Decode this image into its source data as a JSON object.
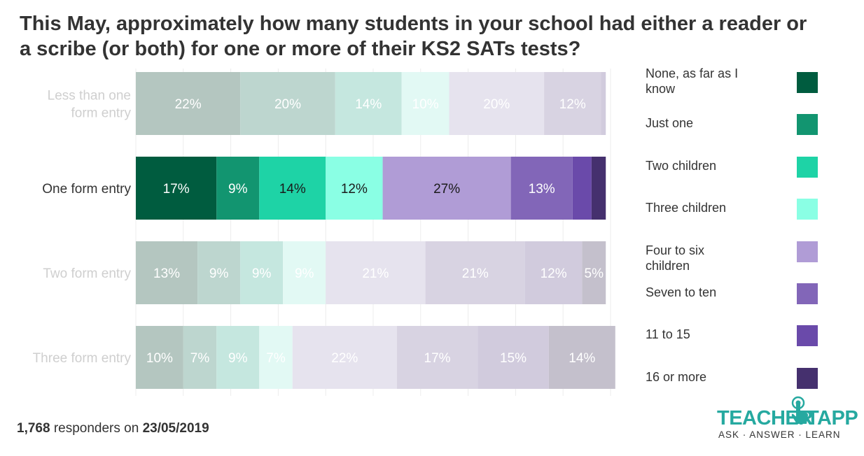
{
  "title": "This May, approximately how many students in your school had either a reader or a scribe (or both) for one or more of their KS2 SATs tests?",
  "footer": {
    "count": "1,768",
    "middle": "responders on",
    "date": "23/05/2019"
  },
  "logo": {
    "word1": "TEACHER",
    "word2": "TAPP",
    "tagline": "ASK · ANSWER · LEARN"
  },
  "legend": [
    {
      "label": "None, as far as I know",
      "color": "#005c3f"
    },
    {
      "label": "Just one",
      "color": "#129570"
    },
    {
      "label": "Two children",
      "color": "#1ed3a6"
    },
    {
      "label": "Three children",
      "color": "#8affe4"
    },
    {
      "label": "Four to six children",
      "color": "#b09cd6"
    },
    {
      "label": "Seven to ten",
      "color": "#8266b8"
    },
    {
      "label": "11 to 15",
      "color": "#6a4aaa"
    },
    {
      "label": "16 or more",
      "color": "#45306e"
    }
  ],
  "chart_data": {
    "type": "bar",
    "orientation": "horizontal",
    "stacked": "100%",
    "highlighted_category": "One form entry",
    "categories": [
      "Less than one form entry",
      "One form entry",
      "Two form entry",
      "Three form entry"
    ],
    "series": [
      {
        "name": "None, as far as I know",
        "values": [
          22,
          17,
          13,
          10
        ],
        "labels": [
          "22%",
          "17%",
          "13%",
          "10%"
        ]
      },
      {
        "name": "Just one",
        "values": [
          20,
          9,
          9,
          7
        ],
        "labels": [
          "20%",
          "9%",
          "9%",
          "7%"
        ]
      },
      {
        "name": "Two children",
        "values": [
          14,
          14,
          9,
          9
        ],
        "labels": [
          "14%",
          "14%",
          "9%",
          "9%"
        ]
      },
      {
        "name": "Three children",
        "values": [
          10,
          12,
          9,
          7
        ],
        "labels": [
          "10%",
          "12%",
          "9%",
          "7%"
        ]
      },
      {
        "name": "Four to six children",
        "values": [
          20,
          27,
          21,
          22
        ],
        "labels": [
          "20%",
          "27%",
          "21%",
          "22%"
        ]
      },
      {
        "name": "Seven to ten",
        "values": [
          12,
          13,
          21,
          17
        ],
        "labels": [
          "12%",
          "13%",
          "21%",
          "17%"
        ]
      },
      {
        "name": "11 to 15",
        "values": [
          1,
          4,
          12,
          15
        ],
        "labels": [
          "",
          "",
          "12%",
          "15%"
        ]
      },
      {
        "name": "16 or more",
        "values": [
          0,
          3,
          5,
          14
        ],
        "labels": [
          "",
          "",
          "5%",
          "14%"
        ]
      }
    ],
    "xlim": [
      0,
      100
    ],
    "grid": true
  }
}
